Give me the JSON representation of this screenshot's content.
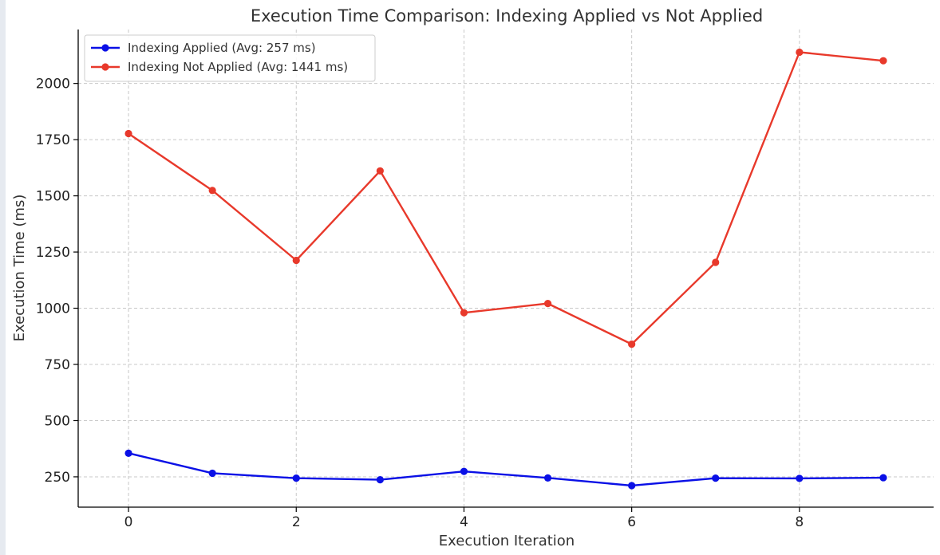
{
  "chart_data": {
    "type": "line",
    "title": "Execution Time Comparison: Indexing Applied vs Not Applied",
    "xlabel": "Execution Iteration",
    "ylabel": "Execution Time (ms)",
    "x": [
      0,
      1,
      2,
      3,
      4,
      5,
      6,
      7,
      8,
      9
    ],
    "xlim": [
      -0.6,
      9.6
    ],
    "ylim": [
      115,
      2240
    ],
    "xticks": [
      0,
      2,
      4,
      6,
      8
    ],
    "yticks": [
      250,
      500,
      750,
      1000,
      1250,
      1500,
      1750,
      2000
    ],
    "grid": true,
    "legend_position": "top-left",
    "series": [
      {
        "name": "Indexing Applied (Avg: 257 ms)",
        "color": "#0a10e6",
        "marker": "circle",
        "values": [
          355,
          266,
          244,
          237,
          274,
          245,
          211,
          244,
          243,
          246
        ]
      },
      {
        "name": "Indexing Not Applied (Avg: 1441 ms)",
        "color": "#e8392b",
        "marker": "circle",
        "values": [
          1777,
          1524,
          1213,
          1611,
          980,
          1021,
          840,
          1204,
          2139,
          2101
        ]
      }
    ]
  }
}
